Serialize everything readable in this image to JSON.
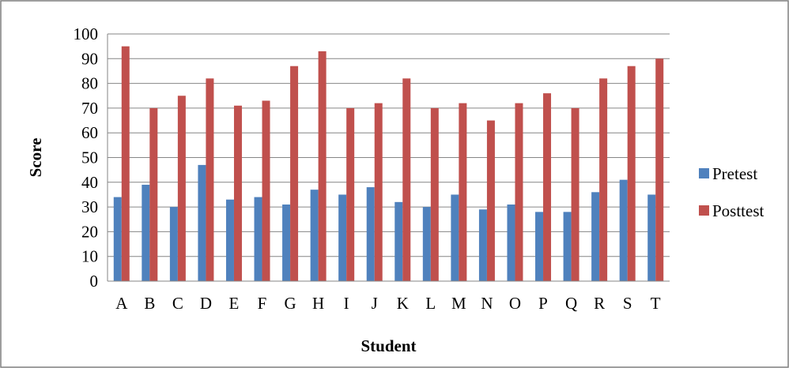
{
  "chart_data": {
    "type": "bar",
    "title": "",
    "xlabel": "Student",
    "ylabel": "Score",
    "ylim": [
      0,
      100
    ],
    "yticks": [
      0,
      10,
      20,
      30,
      40,
      50,
      60,
      70,
      80,
      90,
      100
    ],
    "grid": true,
    "legend_position": "right",
    "categories": [
      "A",
      "B",
      "C",
      "D",
      "E",
      "F",
      "G",
      "H",
      "I",
      "J",
      "K",
      "L",
      "M",
      "N",
      "O",
      "P",
      "Q",
      "R",
      "S",
      "T"
    ],
    "series": [
      {
        "name": "Pretest",
        "color": "#4F81BD",
        "values": [
          34,
          39,
          30,
          47,
          33,
          34,
          31,
          37,
          35,
          38,
          32,
          30,
          35,
          29,
          31,
          28,
          28,
          36,
          41,
          35
        ]
      },
      {
        "name": "Posttest",
        "color": "#C0504D",
        "values": [
          95,
          70,
          75,
          82,
          71,
          73,
          87,
          93,
          70,
          72,
          82,
          70,
          72,
          65,
          72,
          76,
          70,
          82,
          87,
          90
        ]
      }
    ]
  }
}
